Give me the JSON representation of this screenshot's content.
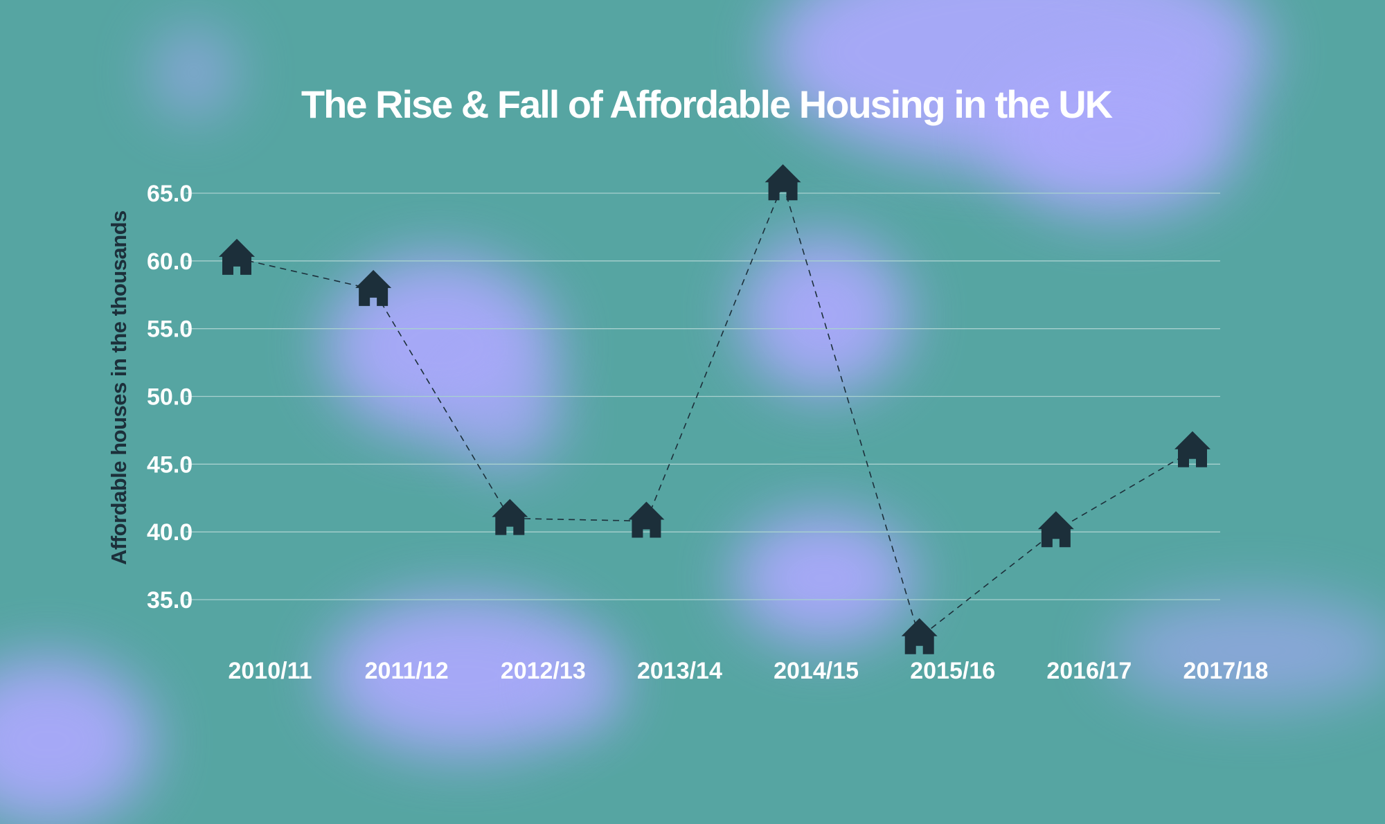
{
  "chart_data": {
    "type": "line",
    "title": "The Rise & Fall of Affordable Housing in the UK",
    "xlabel": "",
    "ylabel": "Affordable houses in the thousands",
    "categories": [
      "2010/11",
      "2011/12",
      "2012/13",
      "2013/14",
      "2014/15",
      "2015/16",
      "2016/17",
      "2017/18"
    ],
    "values": [
      60.2,
      57.9,
      41.0,
      40.8,
      65.7,
      32.2,
      40.1,
      46.0
    ],
    "yticks": [
      "65.0",
      "60.0",
      "55.0",
      "50.0",
      "45.0",
      "40.0",
      "35.0"
    ],
    "ylim": [
      30,
      65
    ],
    "grid": true,
    "marker_icon": "house-icon",
    "colors": {
      "background": "#56a5a2",
      "highlight": "#aaa9fb",
      "marker": "#1c2f3a",
      "gridline": "#a9d1cf",
      "text": "#ffffff"
    }
  }
}
